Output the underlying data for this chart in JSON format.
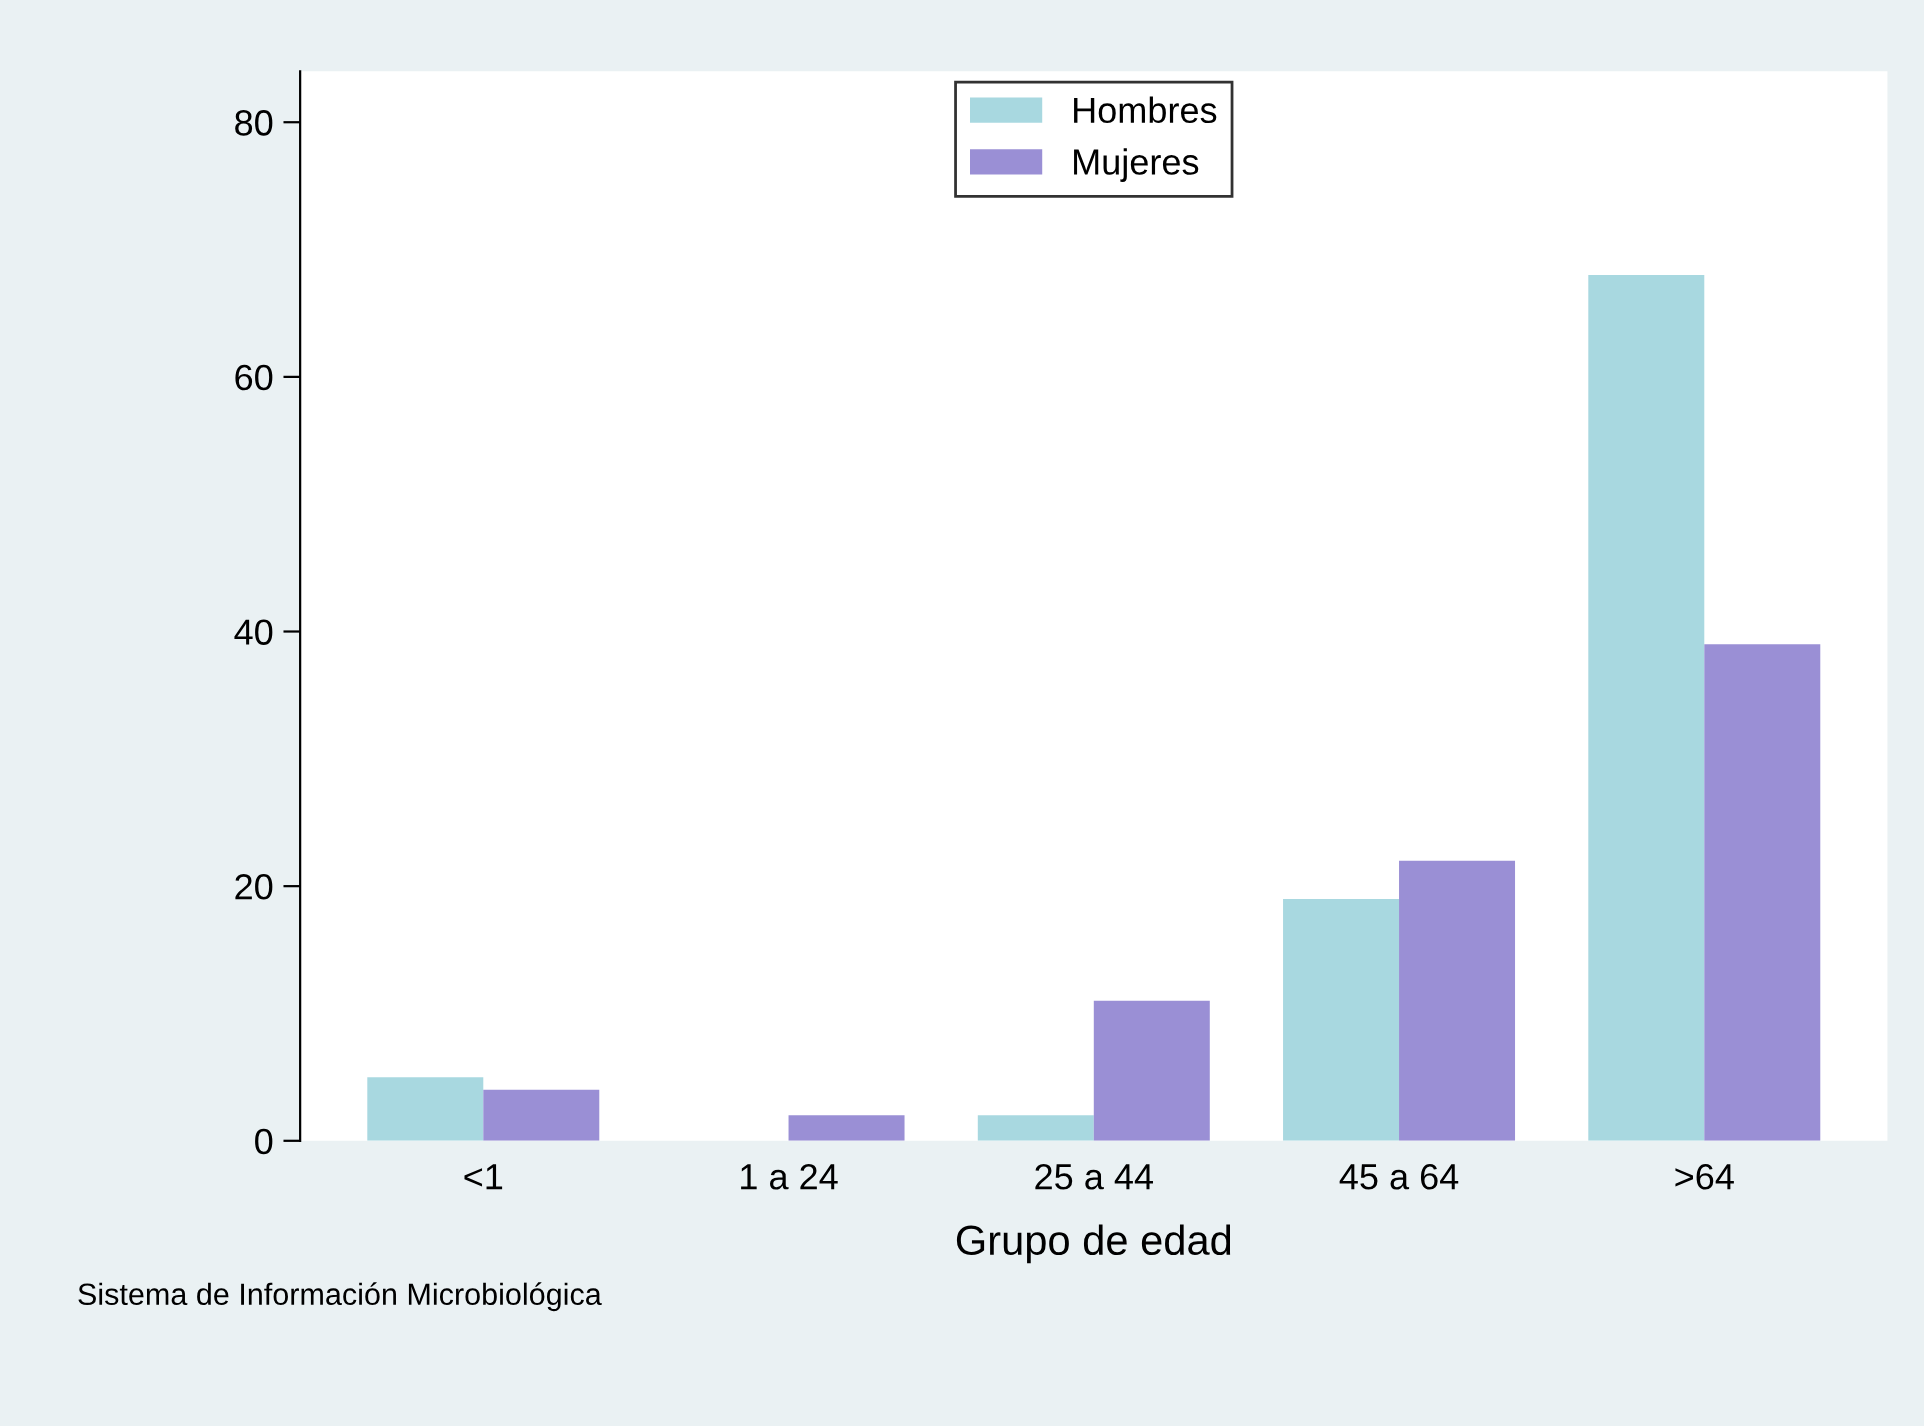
{
  "chart_data": {
    "type": "bar",
    "xlabel": "Grupo de edad",
    "categories": [
      "<1",
      "1 a 24",
      "25 a 44",
      "45 a 64",
      ">64"
    ],
    "series": [
      {
        "name": "Hombres",
        "color": "#a8d8e0",
        "values": [
          5,
          0,
          2,
          19,
          68
        ]
      },
      {
        "name": "Mujeres",
        "color": "#9a8fd5",
        "values": [
          4,
          2,
          11,
          22,
          39
        ]
      }
    ],
    "ylim": [
      0,
      84
    ],
    "yticks": [
      0,
      20,
      40,
      60,
      80
    ],
    "grid": false,
    "legend": "top",
    "annotations": [
      "Sistema de Información Microbiológica"
    ]
  }
}
